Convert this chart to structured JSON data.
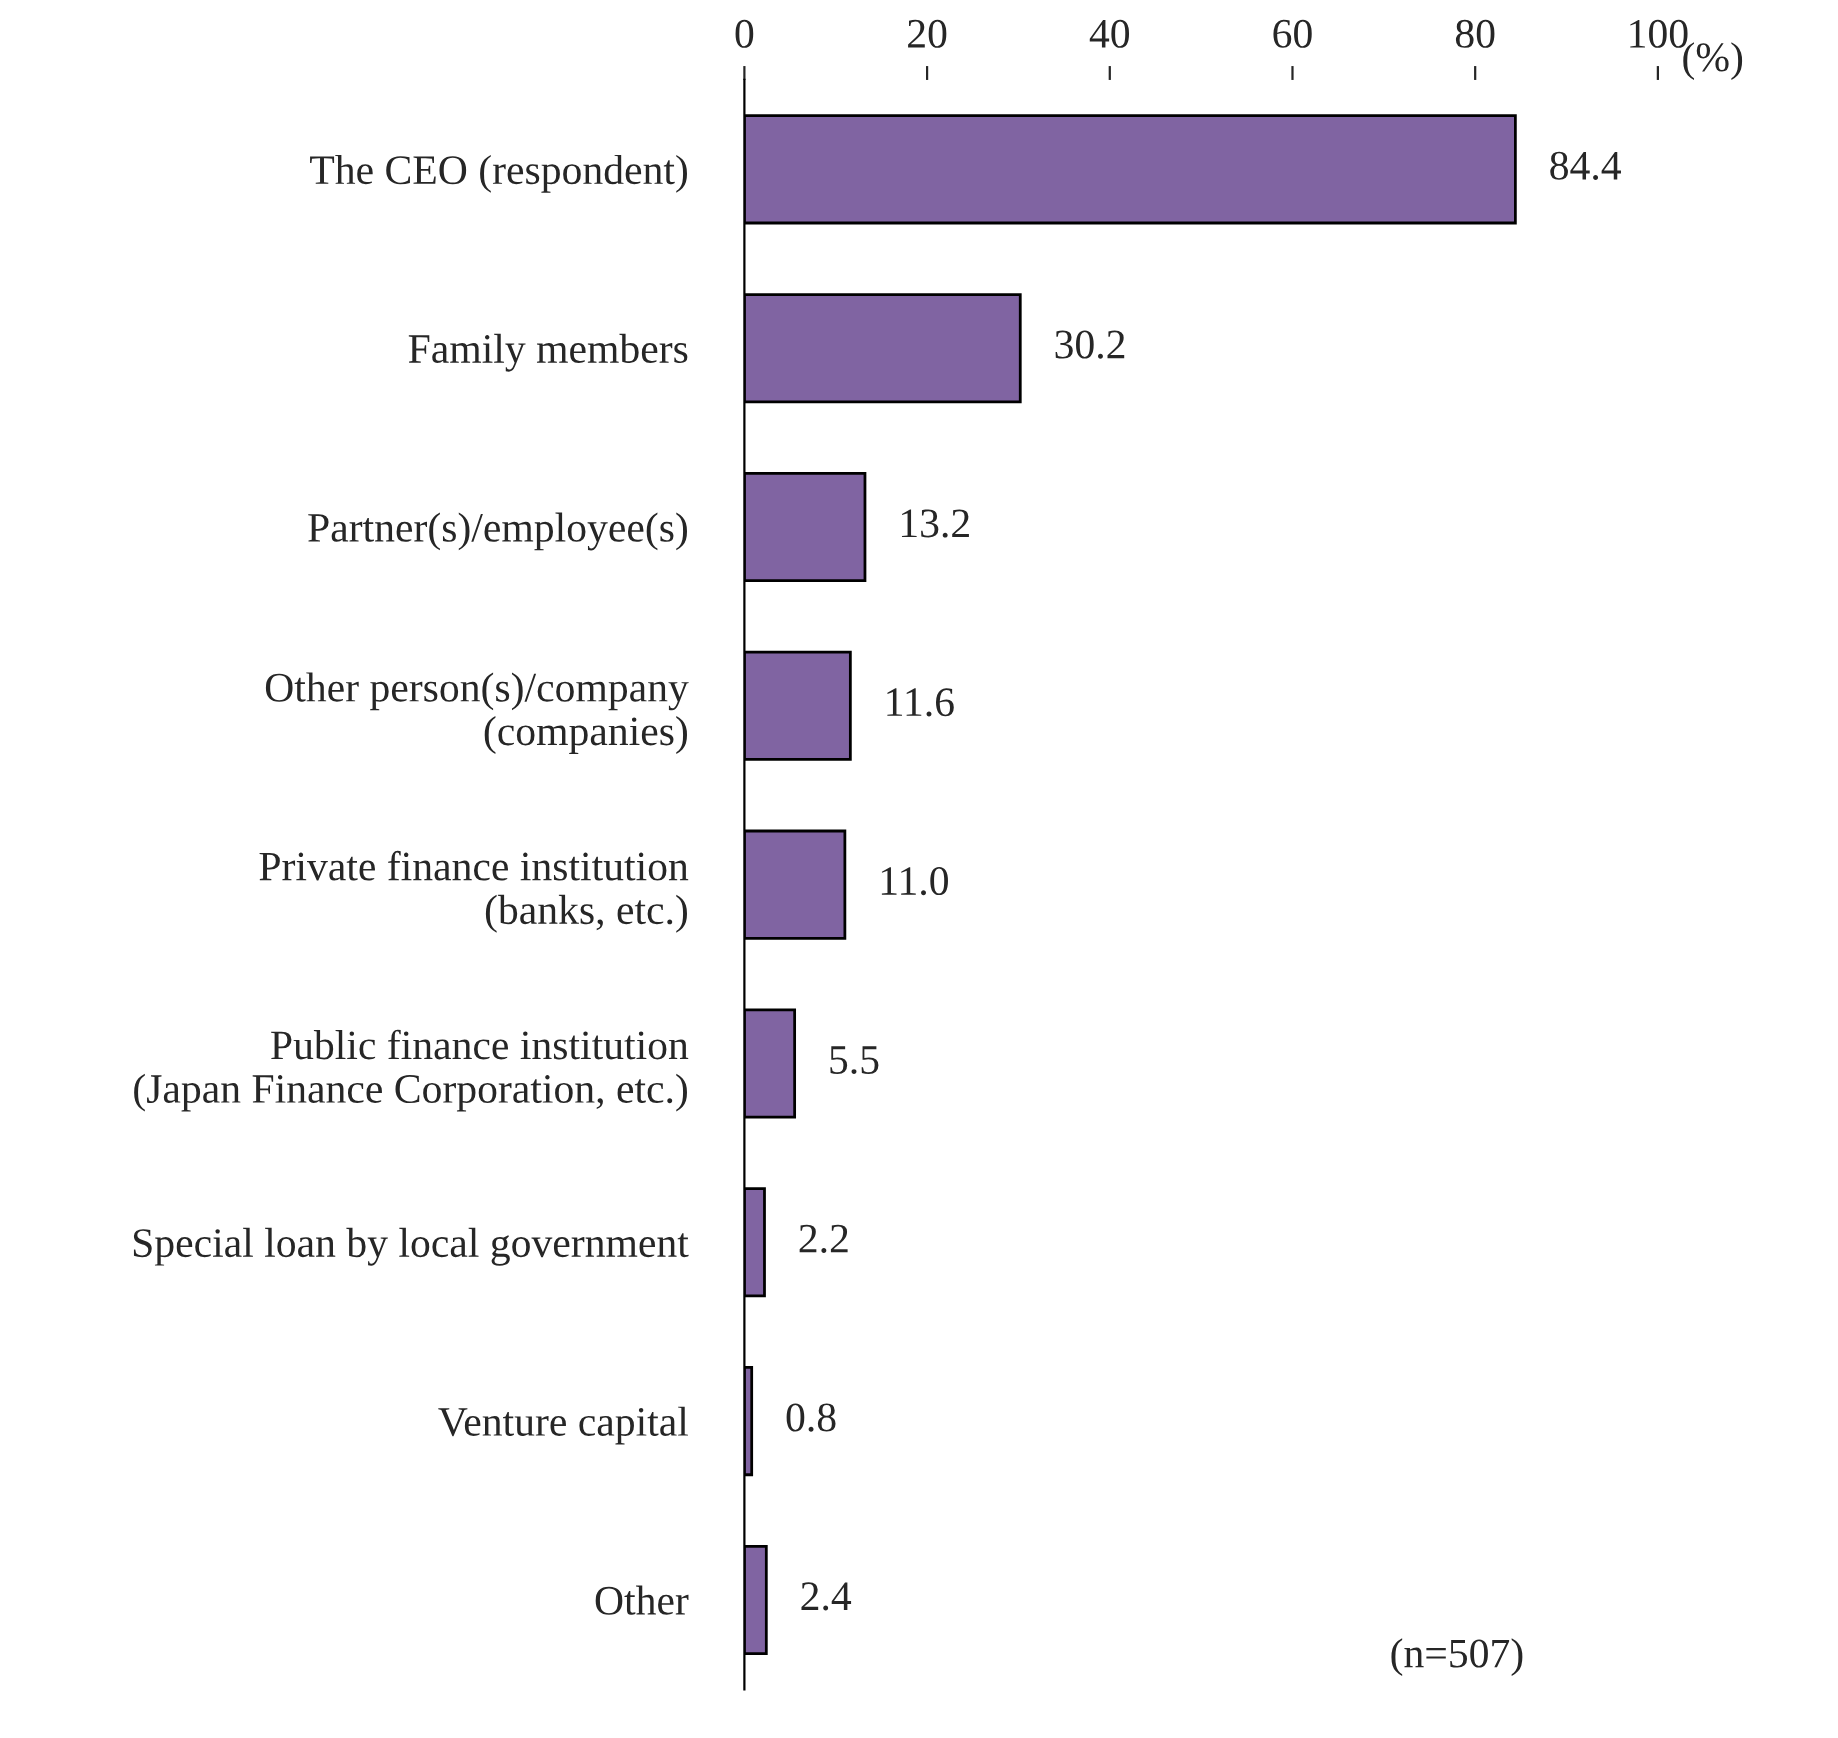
{
  "chart_data": {
    "type": "bar",
    "orientation": "horizontal",
    "xlabel": "(%)",
    "categories": [
      "The CEO (respondent)",
      "Family members",
      "Partner(s)/employee(s)",
      "Other person(s)/company\n(companies)",
      "Private finance institution\n(banks, etc.)",
      "Public finance institution\n(Japan Finance Corporation, etc.)",
      "Special loan by local government",
      "Venture capital",
      "Other"
    ],
    "values": [
      84.4,
      30.2,
      13.2,
      11.6,
      11.0,
      5.5,
      2.2,
      0.8,
      2.4
    ],
    "color": "#8064a2",
    "xlim": [
      0,
      100
    ],
    "xticks": [
      0,
      20,
      40,
      60,
      80,
      100
    ],
    "data_labels": true,
    "value_labels": [
      "84.4",
      "30.2",
      "13.2",
      "11.6",
      "11.0",
      "5.5",
      "2.2",
      "0.8",
      "2.4"
    ],
    "grid": false,
    "legend": false,
    "annotations": [
      "(n=507)"
    ]
  }
}
